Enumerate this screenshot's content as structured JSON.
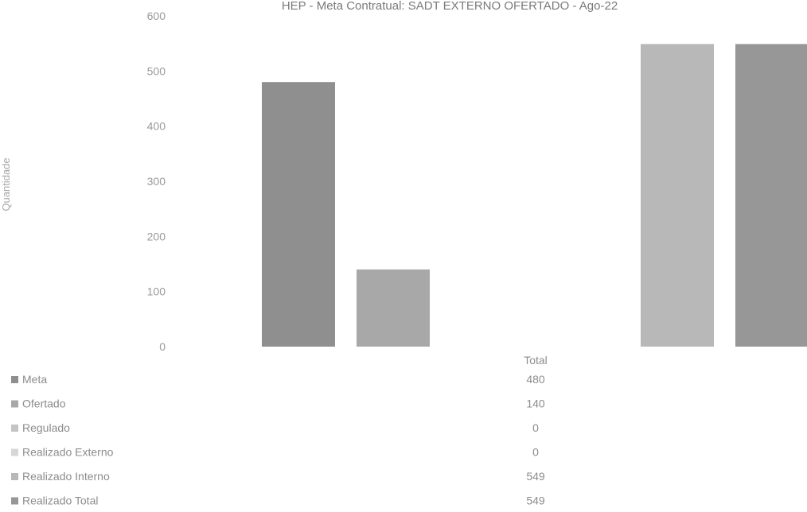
{
  "chart_data": {
    "type": "bar",
    "title": "HEP - Meta Contratual: SADT EXTERNO OFERTADO - Ago-22",
    "xlabel": "",
    "ylabel": "Quantidade",
    "ylim": [
      0,
      600
    ],
    "yticks": [
      "0",
      "100",
      "200",
      "300",
      "400",
      "500",
      "600"
    ],
    "categories": [
      "Total"
    ],
    "series": [
      {
        "name": "Meta",
        "values": [
          480
        ],
        "color": "#8f8f8f"
      },
      {
        "name": "Ofertado",
        "values": [
          140
        ],
        "color": "#a8a8a8"
      },
      {
        "name": "Regulado",
        "values": [
          0
        ],
        "color": "#c4c4c4"
      },
      {
        "name": "Realizado Externo",
        "values": [
          0
        ],
        "color": "#d6d6d6"
      },
      {
        "name": "Realizado Interno",
        "values": [
          549
        ],
        "color": "#b8b8b8"
      },
      {
        "name": "Realizado Total",
        "values": [
          549
        ],
        "color": "#979797"
      }
    ],
    "value_labels": [
      "480",
      "140",
      "0",
      "0",
      "549",
      "549"
    ],
    "grid": false,
    "legend": "bottom-left data table"
  }
}
